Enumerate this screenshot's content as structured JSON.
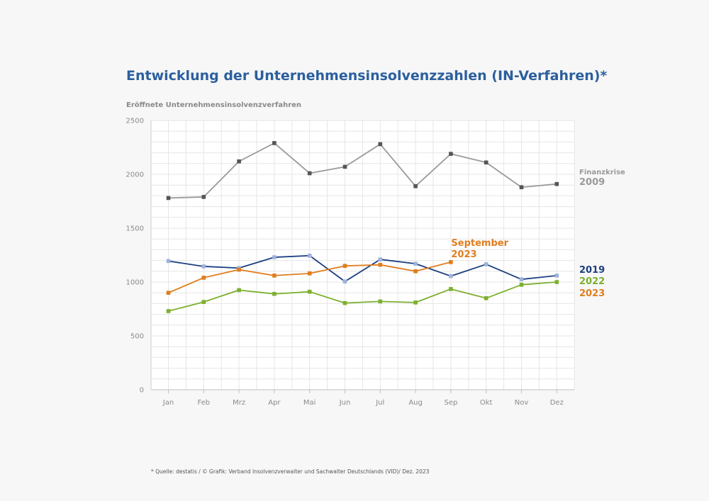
{
  "chart_data": {
    "type": "line",
    "title": "Entwicklung der Unternehmensinsolvenzzahlen (IN-Verfahren)*",
    "ylabel": "Eröffnete Unternehmensinsolvenzverfahren",
    "xlabel": "",
    "categories": [
      "Jan",
      "Feb",
      "Mrz",
      "Apr",
      "Mai",
      "Jun",
      "Jul",
      "Aug",
      "Sep",
      "Okt",
      "Nov",
      "Dez"
    ],
    "ylim": [
      0,
      2500
    ],
    "yticks": [
      0,
      500,
      1000,
      1500,
      2000,
      2500
    ],
    "grid": true,
    "series": [
      {
        "name": "Finanzkrise 2009",
        "label_lines": [
          "Finanzkrise",
          "2009"
        ],
        "color": "#9a9a9a",
        "marker_color": "#555555",
        "values": [
          1780,
          1790,
          2120,
          2290,
          2010,
          2070,
          2280,
          1890,
          2190,
          2110,
          1880,
          1910
        ]
      },
      {
        "name": "2019",
        "label_lines": [
          "2019"
        ],
        "color": "#1b3f80",
        "marker_color": "#9fb2dc",
        "values": [
          1195,
          1145,
          1130,
          1230,
          1245,
          1005,
          1210,
          1170,
          1055,
          1165,
          1025,
          1060
        ]
      },
      {
        "name": "2022",
        "label_lines": [
          "2022"
        ],
        "color": "#7cb02e",
        "marker_color": "#7cb02e",
        "values": [
          730,
          815,
          925,
          890,
          910,
          805,
          820,
          810,
          935,
          850,
          975,
          1000
        ]
      },
      {
        "name": "2023",
        "label_lines": [
          "2023"
        ],
        "color": "#e07d1e",
        "marker_color": "#e07d1e",
        "values": [
          900,
          1040,
          1115,
          1060,
          1080,
          1150,
          1160,
          1100,
          1185,
          null,
          null,
          null
        ]
      }
    ],
    "annotations": [
      {
        "text_lines": [
          "September",
          "2023"
        ],
        "color": "#e07d1e",
        "month": "Sep"
      }
    ]
  },
  "footnote": "* Quelle: destatis / © Grafik: Verband Insolvenzverwalter und Sachwalter Deutschlands (VID)/ Dez. 2023"
}
